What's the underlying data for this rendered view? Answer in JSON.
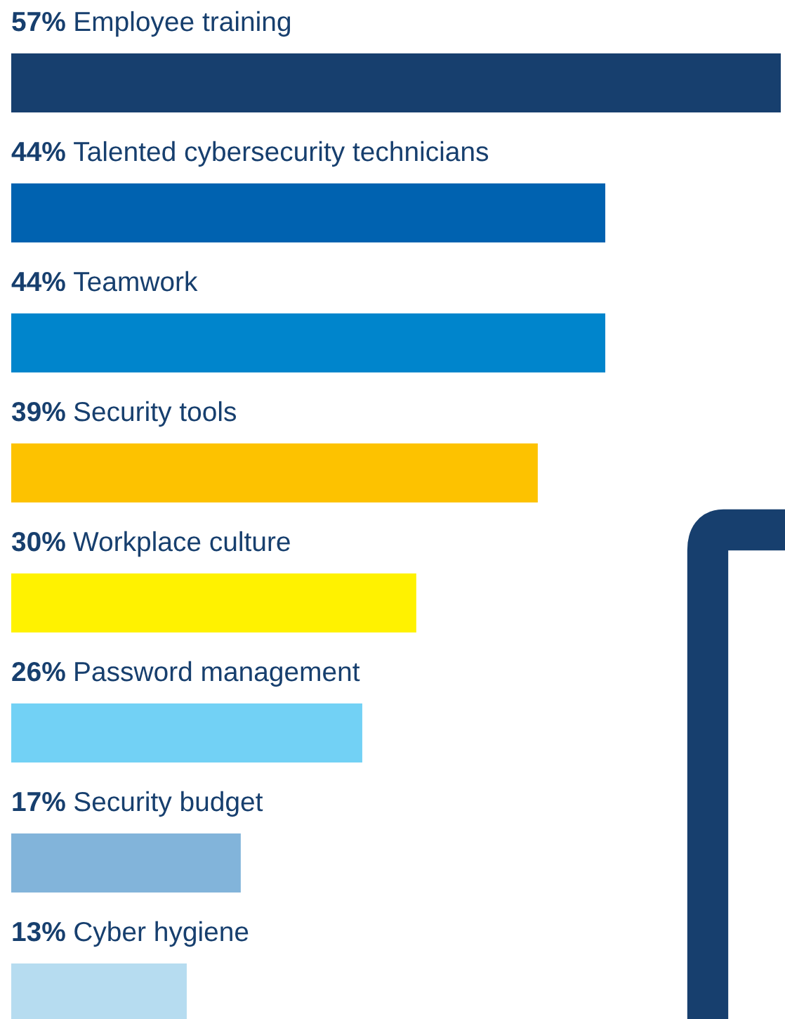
{
  "chart_data": {
    "type": "bar",
    "orientation": "horizontal",
    "categories": [
      "Employee training",
      "Talented cybersecurity technicians",
      "Teamwork",
      "Security tools",
      "Workplace culture",
      "Password management",
      "Security budget",
      "Cyber hygiene"
    ],
    "values": [
      57,
      44,
      44,
      39,
      30,
      26,
      17,
      13
    ],
    "value_labels": [
      "57%",
      "44%",
      "44%",
      "39%",
      "30%",
      "26%",
      "17%",
      "13%"
    ],
    "colors": [
      "#173f6e",
      "#0062b0",
      "#0085cc",
      "#fdc200",
      "#fff200",
      "#72d1f5",
      "#82b4da",
      "#b6dcf0"
    ]
  }
}
